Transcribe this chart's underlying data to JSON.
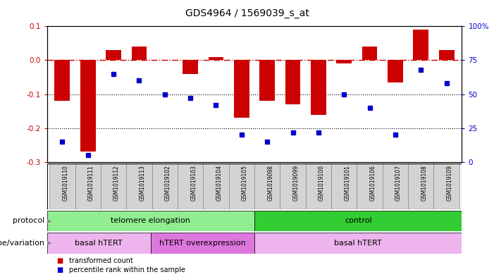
{
  "title": "GDS4964 / 1569039_s_at",
  "samples": [
    "GSM1019110",
    "GSM1019111",
    "GSM1019112",
    "GSM1019113",
    "GSM1019102",
    "GSM1019103",
    "GSM1019104",
    "GSM1019105",
    "GSM1019098",
    "GSM1019099",
    "GSM1019100",
    "GSM1019101",
    "GSM1019106",
    "GSM1019107",
    "GSM1019108",
    "GSM1019109"
  ],
  "red_values": [
    -0.12,
    -0.27,
    0.03,
    0.04,
    0.0,
    -0.04,
    0.01,
    -0.17,
    -0.12,
    -0.13,
    -0.16,
    -0.01,
    0.04,
    -0.065,
    0.09,
    0.03
  ],
  "blue_values_pct": [
    15,
    5,
    65,
    60,
    50,
    47,
    42,
    20,
    15,
    22,
    22,
    50,
    40,
    20,
    68,
    58
  ],
  "ylim_left": [
    -0.3,
    0.1
  ],
  "ylim_right": [
    0,
    100
  ],
  "yticks_left": [
    -0.3,
    -0.2,
    -0.1,
    0.0,
    0.1
  ],
  "yticks_right": [
    0,
    25,
    50,
    75,
    100
  ],
  "ytick_right_labels": [
    "0",
    "25",
    "50",
    "75",
    "100%"
  ],
  "hline_y": 0.0,
  "dotted_lines": [
    -0.1,
    -0.2
  ],
  "protocol_groups": [
    {
      "label": "telomere elongation",
      "start": 0,
      "end": 8,
      "color": "#90EE90"
    },
    {
      "label": "control",
      "start": 8,
      "end": 16,
      "color": "#32CD32"
    }
  ],
  "genotype_groups": [
    {
      "label": "basal hTERT",
      "start": 0,
      "end": 4,
      "color": "#EEB4EE"
    },
    {
      "label": "hTERT overexpression",
      "start": 4,
      "end": 8,
      "color": "#DD77DD"
    },
    {
      "label": "basal hTERT",
      "start": 8,
      "end": 16,
      "color": "#EEB4EE"
    }
  ],
  "bar_color": "#CC0000",
  "dot_color": "#0000CC",
  "ref_line_color": "#CC0000",
  "background_color": "#ffffff",
  "xticklabel_bg": "#D3D3D3",
  "legend_red_label": "transformed count",
  "legend_blue_label": "percentile rank within the sample",
  "protocol_label": "protocol",
  "genotype_label": "genotype/variation"
}
